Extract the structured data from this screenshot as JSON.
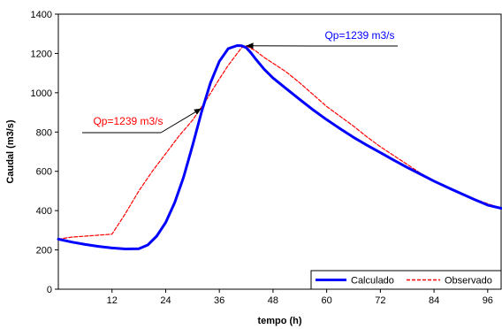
{
  "chart_data": {
    "type": "line",
    "xlabel": "tempo (h)",
    "ylabel": "Caudal (m3/s)",
    "xlim": [
      0,
      99
    ],
    "ylim": [
      0,
      1400
    ],
    "xticks": [
      12,
      24,
      36,
      48,
      60,
      72,
      84,
      96
    ],
    "yticks": [
      0,
      200,
      400,
      600,
      800,
      1000,
      1200,
      1400
    ],
    "grid": false,
    "legend_position": "bottom-right",
    "series": [
      {
        "name": "Calculado",
        "color": "#0000ff",
        "style": "solid",
        "x": [
          0,
          3,
          6,
          9,
          12,
          15,
          18,
          20,
          22,
          24,
          26,
          28,
          30,
          32,
          34,
          36,
          38,
          40,
          41,
          42,
          43,
          44,
          46,
          48,
          51,
          54,
          57,
          60,
          63,
          66,
          69,
          72,
          75,
          78,
          81,
          84,
          87,
          90,
          93,
          96,
          99
        ],
        "y": [
          255,
          240,
          228,
          218,
          210,
          205,
          206,
          225,
          270,
          340,
          440,
          570,
          730,
          900,
          1050,
          1160,
          1225,
          1240,
          1239,
          1230,
          1205,
          1175,
          1120,
          1075,
          1020,
          965,
          912,
          863,
          817,
          773,
          733,
          695,
          657,
          620,
          585,
          550,
          518,
          487,
          457,
          428,
          412
        ]
      },
      {
        "name": "Observado",
        "color": "#ff0000",
        "style": "dashed",
        "x": [
          0,
          3,
          6,
          9,
          12,
          15,
          18,
          21,
          24,
          27,
          30,
          33,
          36,
          38,
          40,
          41,
          42,
          44,
          46,
          48,
          51,
          54,
          57,
          60,
          63,
          66,
          69,
          72,
          75,
          78,
          81,
          84,
          87,
          90,
          93,
          96,
          99
        ],
        "y": [
          255,
          265,
          270,
          275,
          280,
          385,
          500,
          600,
          690,
          780,
          860,
          960,
          1070,
          1140,
          1200,
          1230,
          1239,
          1215,
          1180,
          1150,
          1105,
          1050,
          990,
          930,
          880,
          830,
          775,
          725,
          680,
          635,
          590,
          550,
          515,
          490,
          460,
          435,
          413
        ]
      }
    ],
    "annotations": [
      {
        "text": "Qp=1239 m3/s",
        "color": "#0000ff",
        "target_series": "Calculado",
        "target": [
          42,
          1239
        ]
      },
      {
        "text": "Qp=1239 m3/s",
        "color": "#ff0000",
        "target_series": "Observado",
        "target": [
          32,
          920
        ]
      }
    ]
  }
}
